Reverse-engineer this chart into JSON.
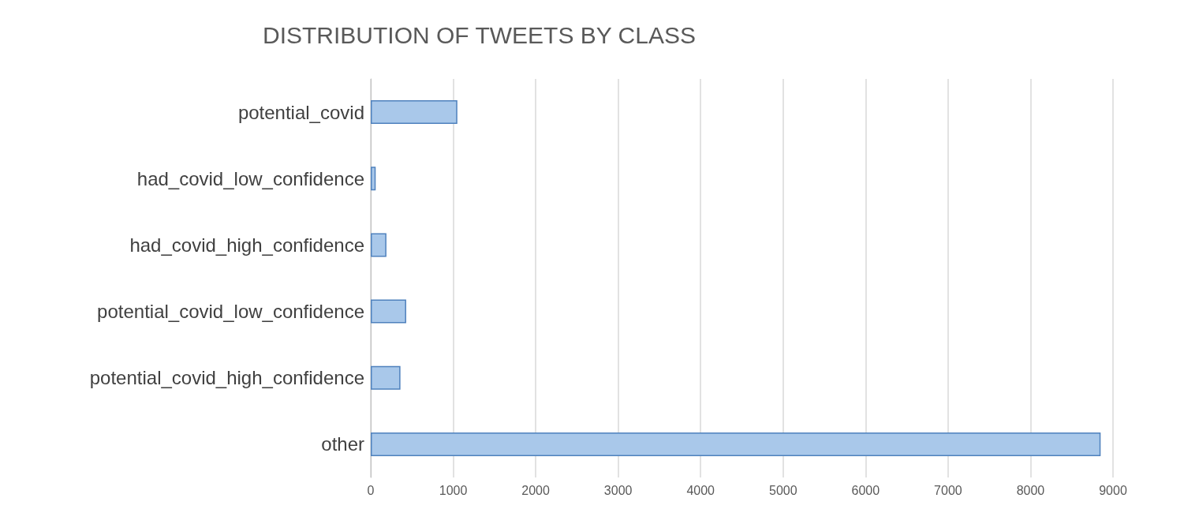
{
  "chart_data": {
    "type": "bar",
    "title": "DISTRIBUTION OF TWEETS BY CLASS",
    "orientation": "horizontal",
    "categories": [
      "potential_covid",
      "had_covid_low_confidence",
      "had_covid_high_confidence",
      "potential_covid_low_confidence",
      "potential_covid_high_confidence",
      "other"
    ],
    "values": [
      1050,
      60,
      190,
      430,
      360,
      8850
    ],
    "color": "#a9c8ea",
    "xlim": [
      0,
      9000
    ],
    "xticks": [
      0,
      1000,
      2000,
      3000,
      4000,
      5000,
      6000,
      7000,
      8000,
      9000
    ],
    "grid": "x"
  }
}
